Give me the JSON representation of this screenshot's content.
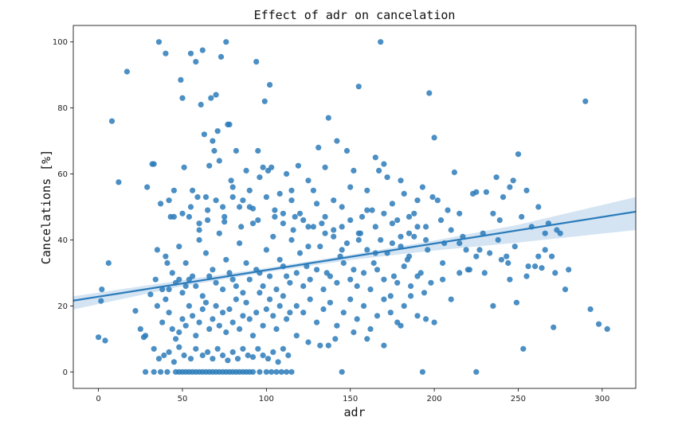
{
  "chart_data": {
    "type": "scatter",
    "title": "Effect of adr on cancelation",
    "xlabel": "adr",
    "ylabel": "Cancelations [%]",
    "xlim": [
      -15,
      320
    ],
    "ylim": [
      -5,
      105
    ],
    "xticks": [
      0,
      50,
      100,
      150,
      200,
      250,
      300
    ],
    "yticks": [
      0,
      20,
      40,
      60,
      80,
      100
    ],
    "grid": false,
    "point_color": "#2b7bba",
    "line_color": "#2b7bba",
    "band_color": "#c6dbef",
    "regression": {
      "intercept": 22.8,
      "slope": 0.0805,
      "x_range": [
        -15,
        320
      ]
    },
    "ci_band": [
      {
        "x": -15,
        "lo": 18.9,
        "hi": 22.9
      },
      {
        "x": 50,
        "lo": 26.0,
        "hi": 27.8
      },
      {
        "x": 100,
        "lo": 30.2,
        "hi": 31.5
      },
      {
        "x": 150,
        "lo": 33.9,
        "hi": 35.5
      },
      {
        "x": 200,
        "lo": 36.8,
        "hi": 39.8
      },
      {
        "x": 250,
        "lo": 39.2,
        "hi": 44.6
      },
      {
        "x": 320,
        "lo": 43.0,
        "hi": 53.0
      }
    ],
    "points": [
      [
        0,
        10.5
      ],
      [
        1.5,
        21.5
      ],
      [
        2,
        25
      ],
      [
        4,
        9.5
      ],
      [
        6,
        33
      ],
      [
        8,
        76
      ],
      [
        12,
        57.5
      ],
      [
        17,
        91
      ],
      [
        22,
        18.5
      ],
      [
        25,
        13
      ],
      [
        27,
        10.5
      ],
      [
        28,
        11
      ],
      [
        29,
        56
      ],
      [
        31,
        23.5
      ],
      [
        32,
        63
      ],
      [
        33,
        63
      ],
      [
        34,
        28
      ],
      [
        35,
        37
      ],
      [
        36,
        100
      ],
      [
        37,
        51
      ],
      [
        38,
        25
      ],
      [
        40,
        96.5
      ],
      [
        41,
        33
      ],
      [
        42,
        52
      ],
      [
        43,
        47
      ],
      [
        45,
        47
      ],
      [
        48,
        28
      ],
      [
        49,
        88.5
      ],
      [
        50,
        83
      ],
      [
        51,
        62
      ],
      [
        52,
        26
      ],
      [
        54,
        47
      ],
      [
        55,
        96.5
      ],
      [
        56,
        55
      ],
      [
        58,
        94
      ],
      [
        59,
        53
      ],
      [
        60,
        45
      ],
      [
        61,
        81
      ],
      [
        62,
        97.5
      ],
      [
        63,
        72
      ],
      [
        64,
        53
      ],
      [
        65,
        49
      ],
      [
        66,
        62.5
      ],
      [
        67,
        83
      ],
      [
        68,
        70
      ],
      [
        69,
        67
      ],
      [
        70,
        84
      ],
      [
        71,
        73
      ],
      [
        72,
        64
      ],
      [
        73,
        95.5
      ],
      [
        74,
        50
      ],
      [
        75,
        45.5
      ],
      [
        76,
        100
      ],
      [
        77,
        75
      ],
      [
        78,
        75
      ],
      [
        79,
        58
      ],
      [
        80,
        53
      ],
      [
        82,
        67
      ],
      [
        84,
        50
      ],
      [
        86,
        52
      ],
      [
        88,
        61
      ],
      [
        90,
        55
      ],
      [
        92,
        49.5
      ],
      [
        94,
        94
      ],
      [
        95,
        67
      ],
      [
        96,
        59
      ],
      [
        98,
        62
      ],
      [
        99,
        82
      ],
      [
        101,
        61
      ],
      [
        102,
        87
      ],
      [
        103,
        62
      ],
      [
        105,
        47
      ],
      [
        108,
        54
      ],
      [
        110,
        48
      ],
      [
        112,
        60
      ],
      [
        115,
        55
      ],
      [
        117,
        47
      ],
      [
        119,
        62.5
      ],
      [
        122,
        46
      ],
      [
        125,
        58
      ],
      [
        128,
        55
      ],
      [
        131,
        68
      ],
      [
        133,
        45
      ],
      [
        135,
        62
      ],
      [
        137,
        77
      ],
      [
        140,
        52
      ],
      [
        142,
        70
      ],
      [
        145,
        44
      ],
      [
        148,
        67
      ],
      [
        150,
        56
      ],
      [
        152,
        61
      ],
      [
        155,
        86.5
      ],
      [
        157,
        47
      ],
      [
        160,
        55
      ],
      [
        163,
        49
      ],
      [
        165,
        65
      ],
      [
        167,
        61
      ],
      [
        168,
        100
      ],
      [
        170,
        63
      ],
      [
        172,
        59
      ],
      [
        175,
        51
      ],
      [
        178,
        46
      ],
      [
        180,
        58
      ],
      [
        182,
        54
      ],
      [
        185,
        42
      ],
      [
        188,
        48
      ],
      [
        190,
        52
      ],
      [
        193,
        56
      ],
      [
        195,
        44
      ],
      [
        197,
        84.5
      ],
      [
        199,
        53
      ],
      [
        200,
        71
      ],
      [
        202,
        52
      ],
      [
        204,
        46
      ],
      [
        206,
        39
      ],
      [
        208,
        49
      ],
      [
        210,
        43
      ],
      [
        212,
        60.5
      ],
      [
        215,
        48
      ],
      [
        217,
        41
      ],
      [
        219,
        37
      ],
      [
        221,
        31
      ],
      [
        223,
        54
      ],
      [
        225,
        54.5
      ],
      [
        227,
        37
      ],
      [
        229,
        42
      ],
      [
        231,
        54.5
      ],
      [
        233,
        36
      ],
      [
        235,
        48
      ],
      [
        237,
        59
      ],
      [
        239,
        46
      ],
      [
        241,
        53
      ],
      [
        243,
        35
      ],
      [
        245,
        56
      ],
      [
        247,
        58
      ],
      [
        249,
        21
      ],
      [
        250,
        66
      ],
      [
        252,
        47
      ],
      [
        253,
        7
      ],
      [
        255,
        55
      ],
      [
        258,
        44
      ],
      [
        260,
        32
      ],
      [
        262,
        50
      ],
      [
        264,
        31.5
      ],
      [
        266,
        42
      ],
      [
        268,
        45
      ],
      [
        270,
        35
      ],
      [
        271,
        13.5
      ],
      [
        273,
        43
      ],
      [
        275,
        42
      ],
      [
        278,
        25
      ],
      [
        280,
        31
      ],
      [
        290,
        82
      ],
      [
        293,
        19
      ],
      [
        298,
        14.5
      ],
      [
        303,
        13
      ],
      [
        35,
        20
      ],
      [
        38,
        15
      ],
      [
        40,
        22
      ],
      [
        42,
        18
      ],
      [
        44,
        13
      ],
      [
        46,
        10
      ],
      [
        48,
        12
      ],
      [
        50,
        16
      ],
      [
        52,
        14
      ],
      [
        54,
        20
      ],
      [
        56,
        17
      ],
      [
        58,
        11
      ],
      [
        60,
        15
      ],
      [
        62,
        19
      ],
      [
        64,
        21
      ],
      [
        66,
        13
      ],
      [
        68,
        16
      ],
      [
        70,
        20
      ],
      [
        72,
        14
      ],
      [
        74,
        18
      ],
      [
        76,
        12
      ],
      [
        78,
        19
      ],
      [
        80,
        15
      ],
      [
        82,
        22
      ],
      [
        84,
        13
      ],
      [
        86,
        17
      ],
      [
        88,
        21
      ],
      [
        90,
        16
      ],
      [
        92,
        11
      ],
      [
        94,
        18
      ],
      [
        96,
        24
      ],
      [
        98,
        14
      ],
      [
        100,
        19
      ],
      [
        102,
        22
      ],
      [
        104,
        17
      ],
      [
        106,
        13
      ],
      [
        108,
        20
      ],
      [
        110,
        23
      ],
      [
        112,
        16
      ],
      [
        114,
        18
      ],
      [
        33,
        7
      ],
      [
        36,
        4
      ],
      [
        39,
        5
      ],
      [
        42,
        6
      ],
      [
        45,
        3
      ],
      [
        48,
        7.5
      ],
      [
        51,
        5
      ],
      [
        55,
        4
      ],
      [
        58,
        7
      ],
      [
        62,
        5
      ],
      [
        65,
        6
      ],
      [
        68,
        4
      ],
      [
        71,
        7
      ],
      [
        74,
        5
      ],
      [
        77,
        3.5
      ],
      [
        80,
        6
      ],
      [
        83,
        4
      ],
      [
        86,
        7
      ],
      [
        89,
        5
      ],
      [
        92,
        4.5
      ],
      [
        95,
        7
      ],
      [
        98,
        5
      ],
      [
        101,
        4
      ],
      [
        104,
        6
      ],
      [
        107,
        3
      ],
      [
        110,
        7
      ],
      [
        113,
        5
      ],
      [
        28,
        0
      ],
      [
        33,
        0
      ],
      [
        37,
        0
      ],
      [
        41,
        0
      ],
      [
        46,
        0
      ],
      [
        48,
        0
      ],
      [
        50,
        0
      ],
      [
        52,
        0
      ],
      [
        54,
        0
      ],
      [
        56,
        0
      ],
      [
        58,
        0
      ],
      [
        60,
        0
      ],
      [
        62,
        0
      ],
      [
        64,
        0
      ],
      [
        66,
        0
      ],
      [
        68,
        0
      ],
      [
        70,
        0
      ],
      [
        72,
        0
      ],
      [
        74,
        0
      ],
      [
        76,
        0
      ],
      [
        78,
        0
      ],
      [
        80,
        0
      ],
      [
        82,
        0
      ],
      [
        84,
        0
      ],
      [
        86,
        0
      ],
      [
        88,
        0
      ],
      [
        90,
        0
      ],
      [
        92,
        0
      ],
      [
        96,
        0
      ],
      [
        100,
        0
      ],
      [
        103,
        0
      ],
      [
        106,
        0
      ],
      [
        109,
        0
      ],
      [
        112,
        0
      ],
      [
        115,
        0
      ],
      [
        145,
        0
      ],
      [
        193,
        0
      ],
      [
        225,
        0
      ],
      [
        40,
        35
      ],
      [
        44,
        30
      ],
      [
        48,
        38
      ],
      [
        52,
        33
      ],
      [
        56,
        29
      ],
      [
        60,
        40
      ],
      [
        64,
        36
      ],
      [
        68,
        31
      ],
      [
        72,
        42
      ],
      [
        76,
        34
      ],
      [
        80,
        28
      ],
      [
        84,
        39
      ],
      [
        88,
        33
      ],
      [
        92,
        45
      ],
      [
        96,
        30
      ],
      [
        100,
        37
      ],
      [
        104,
        41
      ],
      [
        108,
        34
      ],
      [
        112,
        29
      ],
      [
        116,
        43
      ],
      [
        120,
        36
      ],
      [
        124,
        32
      ],
      [
        128,
        44
      ],
      [
        132,
        38
      ],
      [
        136,
        30
      ],
      [
        140,
        41
      ],
      [
        144,
        35
      ],
      [
        148,
        39
      ],
      [
        152,
        31
      ],
      [
        156,
        42
      ],
      [
        160,
        37
      ],
      [
        164,
        33
      ],
      [
        168,
        40
      ],
      [
        172,
        36
      ],
      [
        176,
        29
      ],
      [
        180,
        38
      ],
      [
        184,
        34
      ],
      [
        188,
        41
      ],
      [
        192,
        30
      ],
      [
        196,
        37
      ],
      [
        42,
        25
      ],
      [
        46,
        27
      ],
      [
        50,
        24
      ],
      [
        54,
        28
      ],
      [
        58,
        26
      ],
      [
        62,
        23
      ],
      [
        66,
        29
      ],
      [
        70,
        27
      ],
      [
        74,
        25
      ],
      [
        78,
        30
      ],
      [
        82,
        26
      ],
      [
        86,
        24
      ],
      [
        90,
        28
      ],
      [
        94,
        31
      ],
      [
        98,
        26
      ],
      [
        102,
        29
      ],
      [
        106,
        25
      ],
      [
        110,
        32
      ],
      [
        114,
        27
      ],
      [
        118,
        30
      ],
      [
        122,
        26
      ],
      [
        126,
        28
      ],
      [
        130,
        31
      ],
      [
        134,
        25
      ],
      [
        138,
        29
      ],
      [
        142,
        27
      ],
      [
        146,
        33
      ],
      [
        150,
        28
      ],
      [
        154,
        26
      ],
      [
        158,
        30
      ],
      [
        162,
        25
      ],
      [
        166,
        31
      ],
      [
        170,
        28
      ],
      [
        174,
        23
      ],
      [
        178,
        27
      ],
      [
        182,
        32
      ],
      [
        186,
        26
      ],
      [
        190,
        29
      ],
      [
        194,
        24
      ],
      [
        198,
        27
      ],
      [
        118,
        20
      ],
      [
        122,
        18
      ],
      [
        126,
        22
      ],
      [
        130,
        15
      ],
      [
        134,
        19
      ],
      [
        138,
        21
      ],
      [
        142,
        14
      ],
      [
        146,
        18
      ],
      [
        150,
        22
      ],
      [
        154,
        16
      ],
      [
        158,
        20
      ],
      [
        162,
        13
      ],
      [
        166,
        17
      ],
      [
        170,
        22
      ],
      [
        174,
        18
      ],
      [
        178,
        15
      ],
      [
        182,
        20
      ],
      [
        186,
        23
      ],
      [
        190,
        17
      ],
      [
        195,
        16
      ],
      [
        200,
        15
      ],
      [
        205,
        28
      ],
      [
        210,
        22
      ],
      [
        215,
        30
      ],
      [
        220,
        31
      ],
      [
        235,
        20
      ],
      [
        240,
        34
      ],
      [
        245,
        28
      ],
      [
        255,
        29
      ],
      [
        262,
        35
      ],
      [
        118,
        11
      ],
      [
        125,
        9
      ],
      [
        132,
        8
      ],
      [
        137,
        8
      ],
      [
        141,
        10
      ],
      [
        152,
        12
      ],
      [
        160,
        10
      ],
      [
        170,
        8
      ],
      [
        180,
        14
      ],
      [
        45,
        55
      ],
      [
        50,
        48
      ],
      [
        55,
        50
      ],
      [
        60,
        43
      ],
      [
        65,
        46
      ],
      [
        70,
        52
      ],
      [
        75,
        47
      ],
      [
        80,
        56
      ],
      [
        85,
        44
      ],
      [
        90,
        50
      ],
      [
        95,
        46
      ],
      [
        100,
        53
      ],
      [
        105,
        49
      ],
      [
        110,
        45
      ],
      [
        115,
        52
      ],
      [
        120,
        48
      ],
      [
        125,
        44
      ],
      [
        130,
        51
      ],
      [
        135,
        47
      ],
      [
        140,
        43
      ],
      [
        145,
        50
      ],
      [
        150,
        46
      ],
      [
        155,
        42
      ],
      [
        160,
        49
      ],
      [
        165,
        44
      ],
      [
        170,
        48
      ],
      [
        175,
        45
      ],
      [
        180,
        41
      ],
      [
        185,
        47
      ],
      [
        190,
        44
      ],
      [
        115,
        40
      ],
      [
        125,
        38
      ],
      [
        135,
        42
      ],
      [
        145,
        37
      ],
      [
        155,
        40
      ],
      [
        165,
        36
      ],
      [
        175,
        39
      ],
      [
        185,
        35
      ],
      [
        195,
        40
      ],
      [
        205,
        33
      ],
      [
        215,
        39
      ],
      [
        225,
        35
      ],
      [
        230,
        30
      ],
      [
        238,
        40
      ],
      [
        244,
        33
      ],
      [
        248,
        38
      ],
      [
        256,
        32
      ],
      [
        266,
        37
      ],
      [
        272,
        30
      ]
    ]
  }
}
